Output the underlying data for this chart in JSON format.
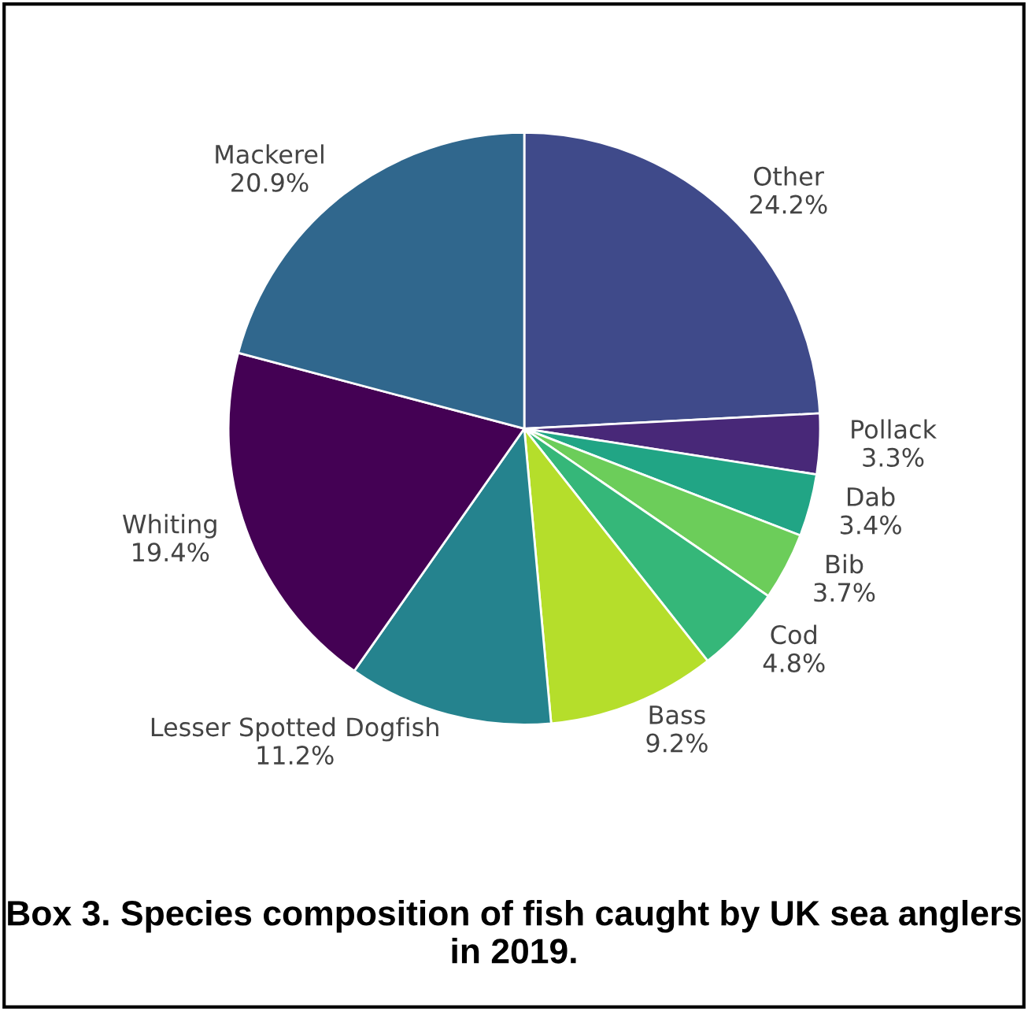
{
  "chart_data": {
    "type": "pie",
    "title": "Box 3. Species composition of fish caught by UK sea anglers in 2019.",
    "categories": [
      "Other",
      "Pollack",
      "Dab",
      "Bib",
      "Cod",
      "Bass",
      "Lesser Spotted Dogfish",
      "Whiting",
      "Mackerel"
    ],
    "values": [
      24.2,
      3.3,
      3.4,
      3.7,
      4.8,
      9.2,
      11.2,
      19.4,
      20.9
    ],
    "value_labels": [
      "24.2%",
      "3.3%",
      "3.4%",
      "3.7%",
      "4.8%",
      "9.2%",
      "11.2%",
      "19.4%",
      "20.9%"
    ],
    "colors": [
      "#3f4a8a",
      "#482878",
      "#21a585",
      "#6ccd5a",
      "#35b779",
      "#b5de2b",
      "#25838e",
      "#440154",
      "#30678d"
    ]
  }
}
